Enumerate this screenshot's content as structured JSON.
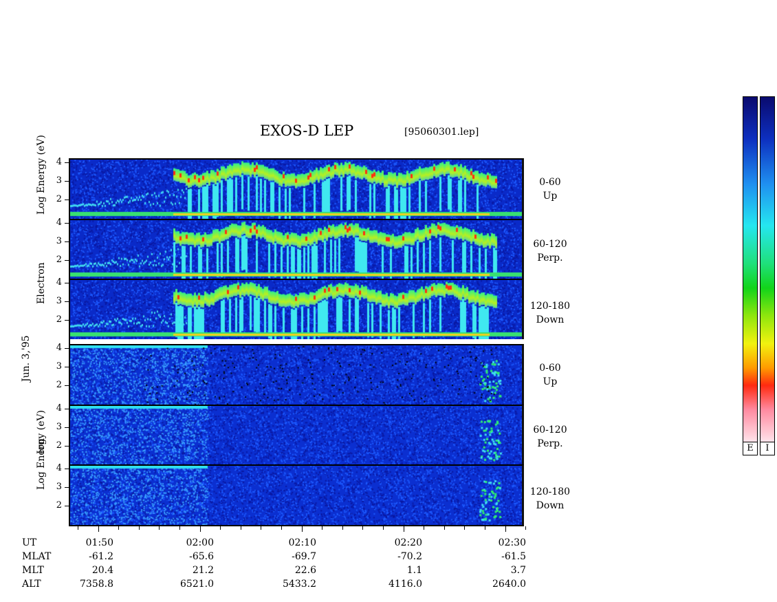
{
  "header": {
    "title": "EXOS-D LEP",
    "file": "[95060301.lep]"
  },
  "date_label": "Jun. 3,'95",
  "chart_data": {
    "type": "heatmap",
    "y_ticks": [
      "4",
      "3",
      "2"
    ],
    "electron": {
      "axis_label_lines": [
        "Electron",
        "Log  Energy (eV)"
      ],
      "panels": [
        {
          "range": "0-60",
          "dir": "Up"
        },
        {
          "range": "60-120",
          "dir": "Perp."
        },
        {
          "range": "120-180",
          "dir": "Down"
        }
      ]
    },
    "ion": {
      "axis_label_lines": [
        "Ion",
        "Log  Energy (eV)"
      ],
      "panels": [
        {
          "range": "0-60",
          "dir": "Up"
        },
        {
          "range": "60-120",
          "dir": "Perp."
        },
        {
          "range": "120-180",
          "dir": "Down"
        }
      ]
    },
    "footer": {
      "UT": [
        "01:50",
        "02:00",
        "02:10",
        "02:20",
        "02:30"
      ],
      "MLAT": [
        "-61.2",
        "-65.6",
        "-69.7",
        "-70.2",
        "-61.5"
      ],
      "MLT": [
        "20.4",
        "21.2",
        "22.6",
        "1.1",
        "3.7"
      ],
      "ALT": [
        "7358.8",
        "6521.0",
        "5433.2",
        "4116.0",
        "2640.0"
      ],
      "row_labels": [
        "UT",
        "MLAT",
        "MLT",
        "ALT"
      ]
    },
    "colorbars": [
      {
        "label": "E"
      },
      {
        "label": "I"
      }
    ]
  }
}
